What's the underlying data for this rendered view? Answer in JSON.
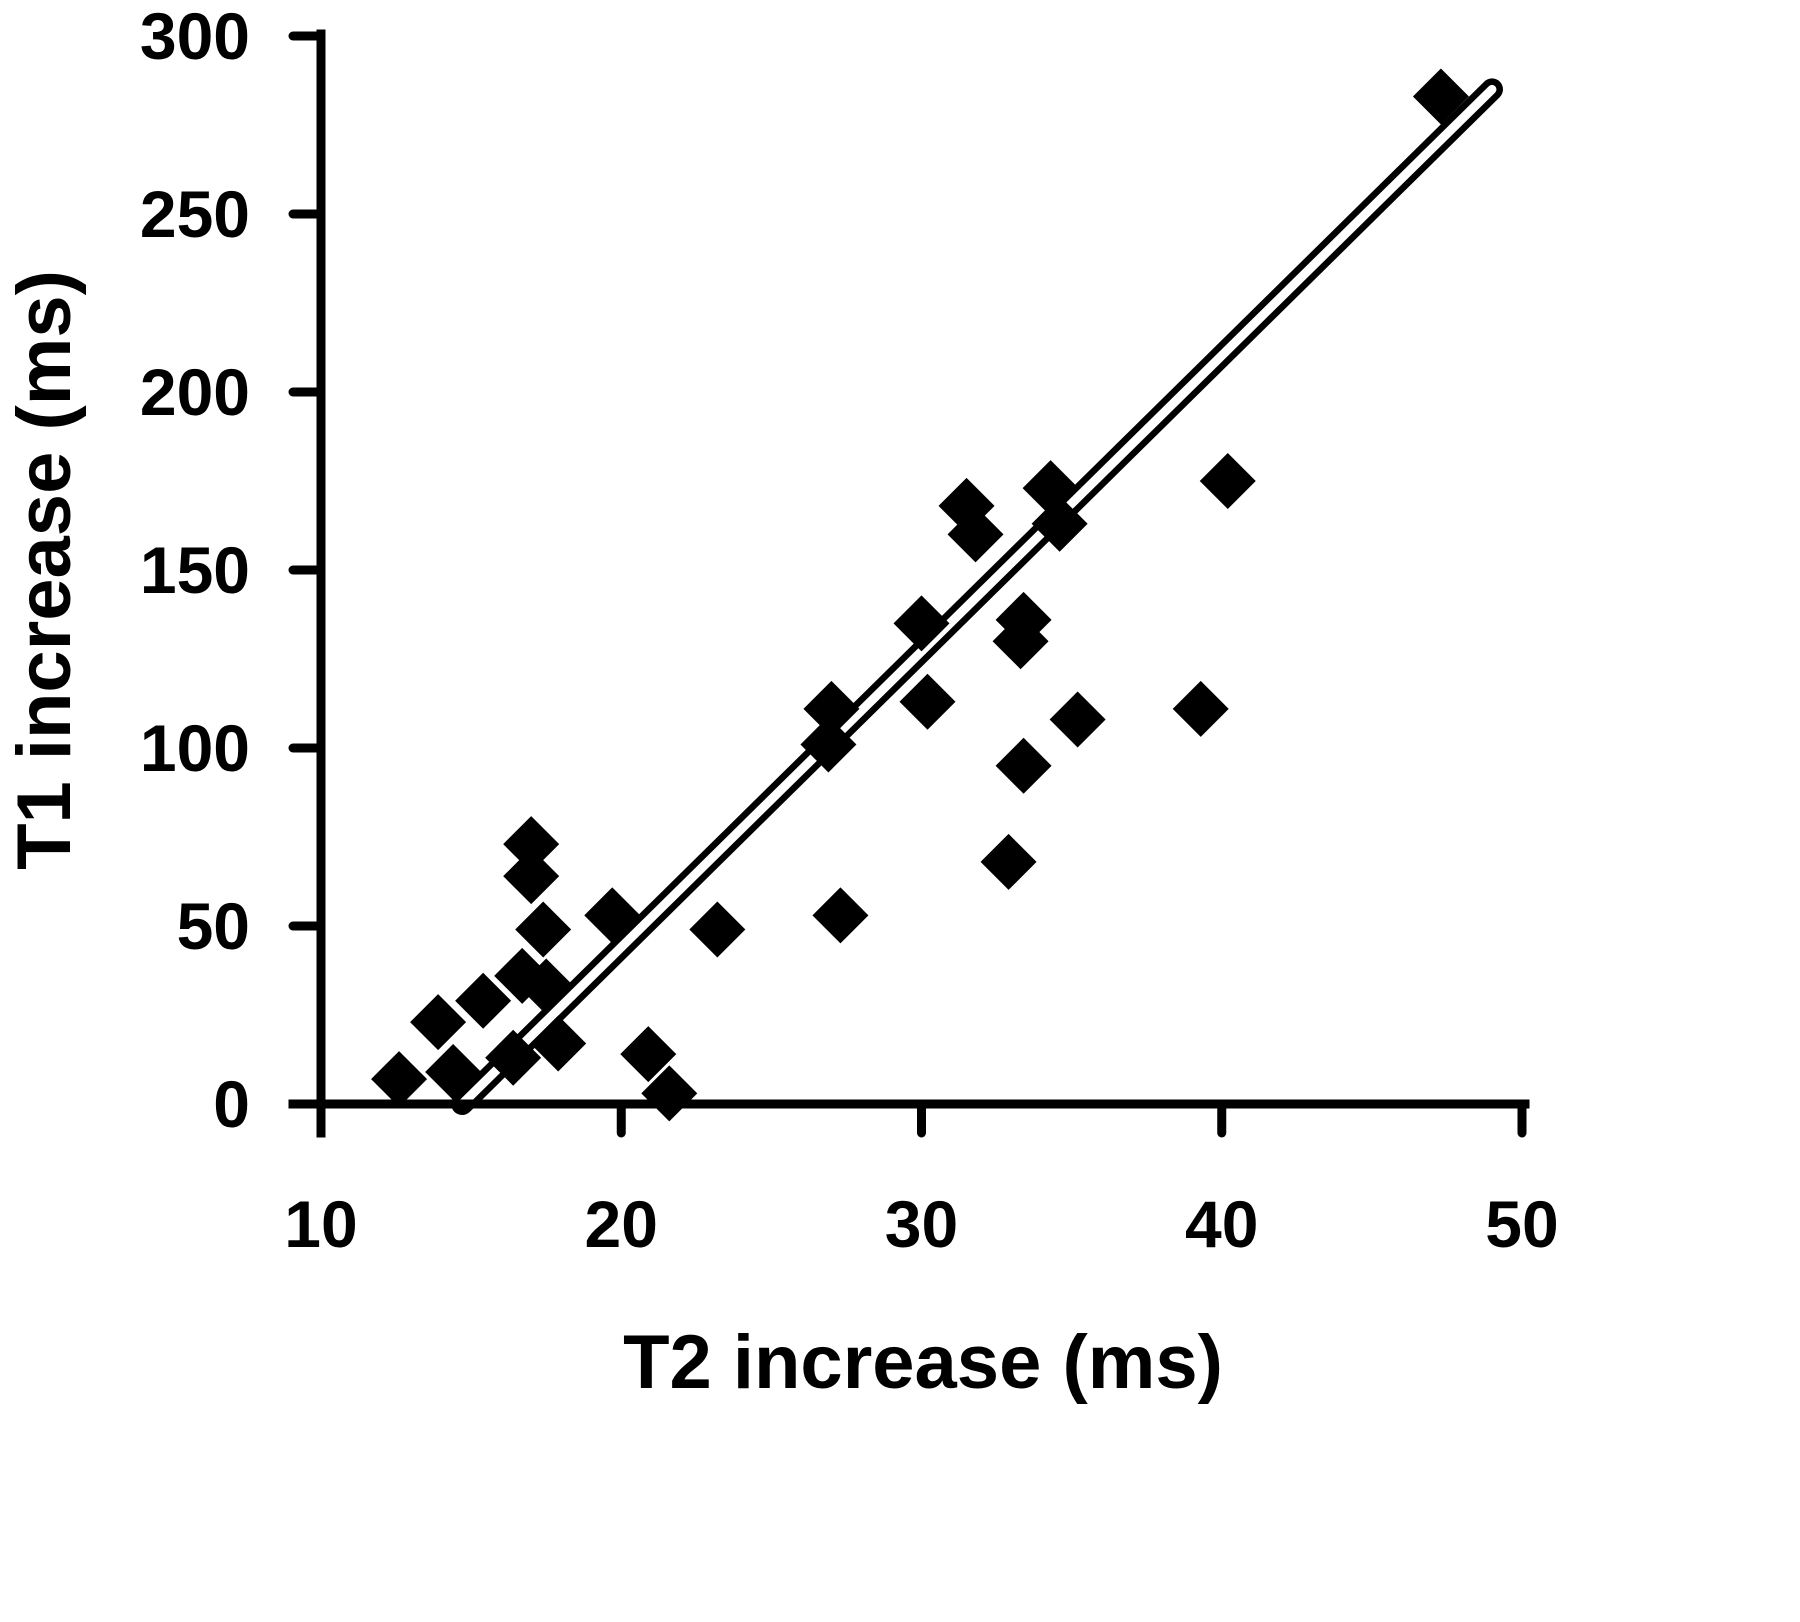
{
  "chart_data": {
    "type": "scatter",
    "title": "",
    "xlabel": "T2 increase (ms)",
    "ylabel": "T1 increase (ms)",
    "xlim": [
      10,
      50
    ],
    "ylim": [
      0,
      300
    ],
    "x_ticks": [
      "10",
      "20",
      "30",
      "40",
      "50"
    ],
    "y_ticks": [
      "0",
      "50",
      "100",
      "150",
      "200",
      "250",
      "300"
    ],
    "grid": false,
    "legend": "none",
    "marker": "diamond",
    "color": "#000000",
    "series": [
      {
        "points": [
          {
            "x": 12.6,
            "y": 7
          },
          {
            "x": 13.9,
            "y": 23
          },
          {
            "x": 14.4,
            "y": 9
          },
          {
            "x": 15.4,
            "y": 29
          },
          {
            "x": 16.4,
            "y": 13
          },
          {
            "x": 16.7,
            "y": 36
          },
          {
            "x": 17.0,
            "y": 73
          },
          {
            "x": 17.0,
            "y": 64
          },
          {
            "x": 17.4,
            "y": 49
          },
          {
            "x": 17.5,
            "y": 33
          },
          {
            "x": 17.9,
            "y": 17
          },
          {
            "x": 19.7,
            "y": 53
          },
          {
            "x": 20.9,
            "y": 14
          },
          {
            "x": 21.6,
            "y": 3
          },
          {
            "x": 23.2,
            "y": 49
          },
          {
            "x": 26.9,
            "y": 101
          },
          {
            "x": 27.0,
            "y": 111
          },
          {
            "x": 27.3,
            "y": 53
          },
          {
            "x": 30.0,
            "y": 135
          },
          {
            "x": 30.2,
            "y": 113
          },
          {
            "x": 31.5,
            "y": 168
          },
          {
            "x": 31.8,
            "y": 160
          },
          {
            "x": 32.9,
            "y": 68
          },
          {
            "x": 33.3,
            "y": 130
          },
          {
            "x": 33.4,
            "y": 136
          },
          {
            "x": 33.4,
            "y": 95
          },
          {
            "x": 34.3,
            "y": 173
          },
          {
            "x": 34.6,
            "y": 163
          },
          {
            "x": 35.2,
            "y": 108
          },
          {
            "x": 39.3,
            "y": 111
          },
          {
            "x": 40.2,
            "y": 175
          },
          {
            "x": 47.3,
            "y": 283
          }
        ]
      }
    ],
    "fit_line": {
      "x1": 14.7,
      "y1": 0,
      "x2": 49.0,
      "y2": 285
    }
  }
}
